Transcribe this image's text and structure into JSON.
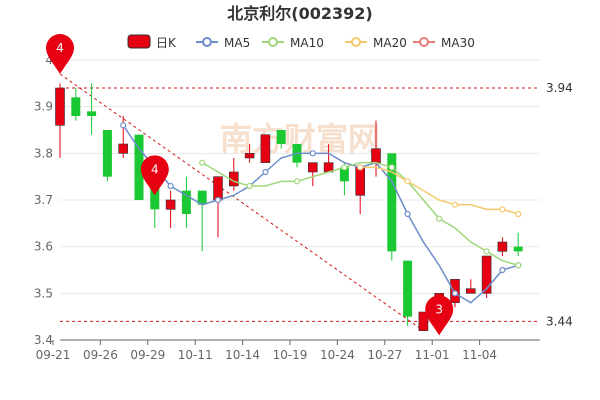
{
  "chart_data": {
    "type": "candlestick",
    "title": "北京利尔(002392)",
    "watermark": "南方财富网",
    "legend": [
      {
        "label": "日K",
        "color": "#e60012",
        "kind": "box"
      },
      {
        "label": "MA5",
        "color": "#6d8ccb",
        "kind": "line"
      },
      {
        "label": "MA10",
        "color": "#9fd67a",
        "kind": "line"
      },
      {
        "label": "MA20",
        "color": "#f5c96a",
        "kind": "line"
      },
      {
        "label": "MA30",
        "color": "#ec7a7a",
        "kind": "line"
      }
    ],
    "yaxis": {
      "min": 3.4,
      "max": 4.0,
      "ticks": [
        "3.4",
        "3.5",
        "3.6",
        "3.7",
        "3.8",
        "3.9",
        "4"
      ]
    },
    "xaxis": {
      "tick_labels": [
        "09-21",
        "09-26",
        "09-29",
        "10-11",
        "10-14",
        "10-19",
        "10-24",
        "10-27",
        "11-01",
        "11-04"
      ],
      "tick_indices": [
        0,
        3,
        6,
        9,
        12,
        15,
        18,
        21,
        24,
        27
      ]
    },
    "up_color": "#e60012",
    "down_color": "#19c832",
    "candles": [
      {
        "o": 3.86,
        "c": 3.94,
        "h": 3.95,
        "l": 3.79
      },
      {
        "o": 3.92,
        "c": 3.88,
        "h": 3.94,
        "l": 3.87
      },
      {
        "o": 3.89,
        "c": 3.88,
        "h": 3.95,
        "l": 3.84
      },
      {
        "o": 3.85,
        "c": 3.75,
        "h": 3.85,
        "l": 3.74
      },
      {
        "o": 3.8,
        "c": 3.82,
        "h": 3.88,
        "l": 3.79
      },
      {
        "o": 3.84,
        "c": 3.7,
        "h": 3.84,
        "l": 3.7
      },
      {
        "o": 3.73,
        "c": 3.68,
        "h": 3.79,
        "l": 3.64
      },
      {
        "o": 3.68,
        "c": 3.7,
        "h": 3.72,
        "l": 3.64
      },
      {
        "o": 3.72,
        "c": 3.67,
        "h": 3.75,
        "l": 3.64
      },
      {
        "o": 3.72,
        "c": 3.69,
        "h": 3.72,
        "l": 3.59
      },
      {
        "o": 3.7,
        "c": 3.75,
        "h": 3.75,
        "l": 3.62
      },
      {
        "o": 3.73,
        "c": 3.76,
        "h": 3.79,
        "l": 3.72
      },
      {
        "o": 3.79,
        "c": 3.8,
        "h": 3.82,
        "l": 3.78
      },
      {
        "o": 3.78,
        "c": 3.84,
        "h": 3.84,
        "l": 3.78
      },
      {
        "o": 3.85,
        "c": 3.82,
        "h": 3.85,
        "l": 3.81
      },
      {
        "o": 3.82,
        "c": 3.78,
        "h": 3.82,
        "l": 3.77
      },
      {
        "o": 3.76,
        "c": 3.78,
        "h": 3.78,
        "l": 3.73
      },
      {
        "o": 3.76,
        "c": 3.78,
        "h": 3.82,
        "l": 3.76
      },
      {
        "o": 3.77,
        "c": 3.74,
        "h": 3.78,
        "l": 3.71
      },
      {
        "o": 3.71,
        "c": 3.77,
        "h": 3.77,
        "l": 3.67
      },
      {
        "o": 3.78,
        "c": 3.81,
        "h": 3.87,
        "l": 3.75
      },
      {
        "o": 3.8,
        "c": 3.59,
        "h": 3.8,
        "l": 3.57
      },
      {
        "o": 3.57,
        "c": 3.45,
        "h": 3.57,
        "l": 3.43
      },
      {
        "o": 3.42,
        "c": 3.46,
        "h": 3.46,
        "l": 3.42
      },
      {
        "o": 3.43,
        "c": 3.5,
        "h": 3.5,
        "l": 3.43
      },
      {
        "o": 3.48,
        "c": 3.53,
        "h": 3.53,
        "l": 3.47
      },
      {
        "o": 3.5,
        "c": 3.51,
        "h": 3.53,
        "l": 3.5
      },
      {
        "o": 3.5,
        "c": 3.58,
        "h": 3.58,
        "l": 3.49
      },
      {
        "o": 3.59,
        "c": 3.61,
        "h": 3.62,
        "l": 3.58
      },
      {
        "o": 3.6,
        "c": 3.59,
        "h": 3.63,
        "l": 3.58
      }
    ],
    "ma5": [
      null,
      null,
      null,
      null,
      3.86,
      3.81,
      3.77,
      3.73,
      3.71,
      3.69,
      3.7,
      3.71,
      3.73,
      3.76,
      3.79,
      3.8,
      3.8,
      3.8,
      3.78,
      3.77,
      3.78,
      3.74,
      3.67,
      3.61,
      3.56,
      3.5,
      3.48,
      3.51,
      3.55,
      3.56
    ],
    "ma10": [
      null,
      null,
      null,
      null,
      null,
      null,
      null,
      null,
      null,
      3.78,
      3.76,
      3.74,
      3.73,
      3.73,
      3.74,
      3.74,
      3.75,
      3.76,
      3.77,
      3.78,
      3.78,
      3.77,
      3.74,
      3.7,
      3.66,
      3.64,
      3.61,
      3.59,
      3.57,
      3.56
    ],
    "ma20": [
      null,
      null,
      null,
      null,
      null,
      null,
      null,
      null,
      null,
      null,
      null,
      null,
      null,
      null,
      null,
      null,
      null,
      null,
      null,
      3.77,
      3.77,
      3.76,
      3.74,
      3.72,
      3.7,
      3.69,
      3.69,
      3.68,
      3.68,
      3.67
    ],
    "ma30": [],
    "ref_lines": [
      {
        "value": 3.94,
        "label": "3.94"
      },
      {
        "value": 3.44,
        "label": "3.44"
      }
    ],
    "trend_line": {
      "from": {
        "index": 0,
        "value": 3.97
      },
      "to": {
        "index": 23,
        "value": 3.42
      }
    },
    "pins": [
      {
        "index": 0,
        "value": 3.97,
        "label": "4"
      },
      {
        "index": 6,
        "value": 3.71,
        "label": "4"
      },
      {
        "index": 24,
        "value": 3.41,
        "label": "3"
      }
    ]
  }
}
